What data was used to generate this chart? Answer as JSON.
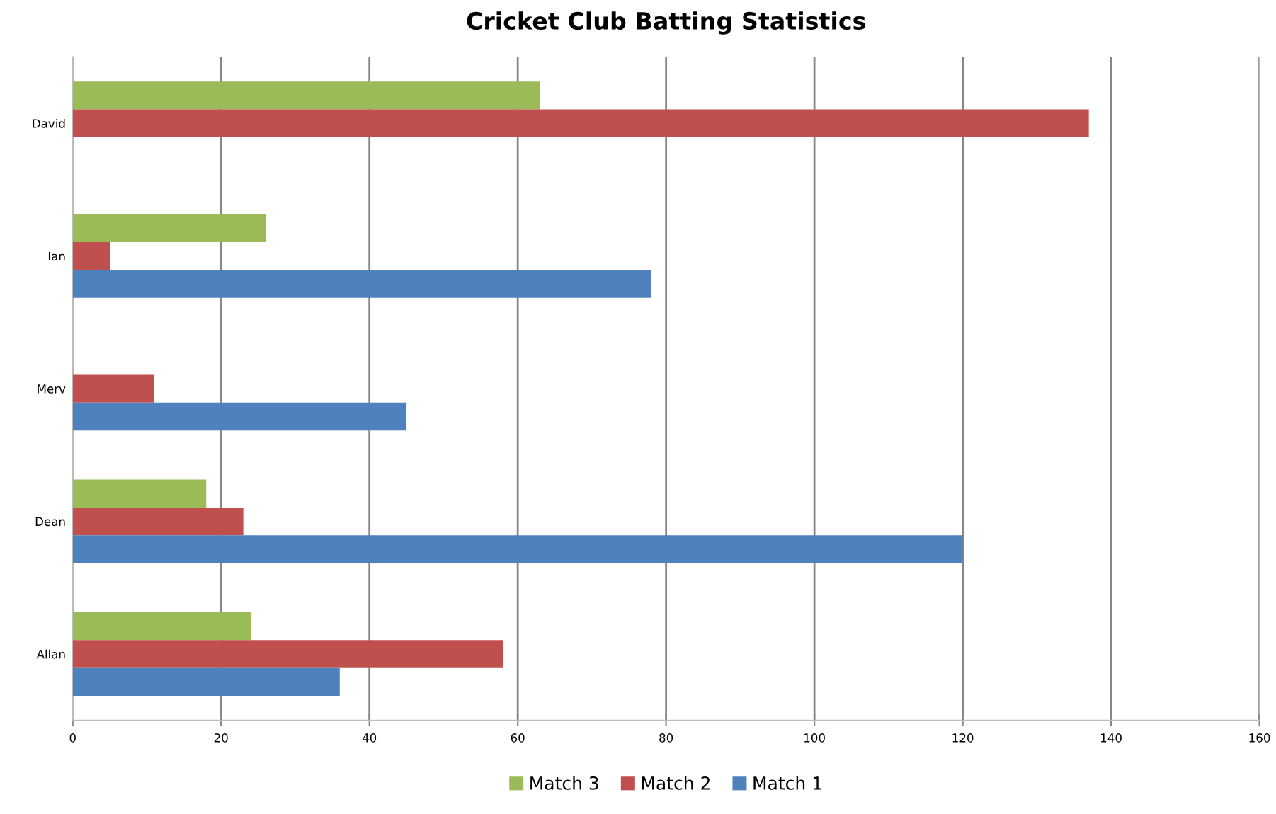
{
  "chart_data": {
    "type": "bar",
    "orientation": "horizontal",
    "title": "Cricket Club Batting Statistics",
    "categories": [
      "David",
      "Ian",
      "Merv",
      "Dean",
      "Allan"
    ],
    "series": [
      {
        "name": "Match 3",
        "color": "#9bbb59",
        "values": [
          63,
          26,
          null,
          18,
          24
        ]
      },
      {
        "name": "Match 2",
        "color": "#c0504d",
        "values": [
          137,
          5,
          11,
          23,
          58
        ]
      },
      {
        "name": "Match 1",
        "color": "#4f81bd",
        "values": [
          null,
          78,
          45,
          120,
          36
        ]
      }
    ],
    "xlim": [
      0,
      160
    ],
    "xticks": [
      0,
      20,
      40,
      60,
      80,
      100,
      120,
      140,
      160
    ],
    "grid": "x",
    "legend": "bottom"
  }
}
